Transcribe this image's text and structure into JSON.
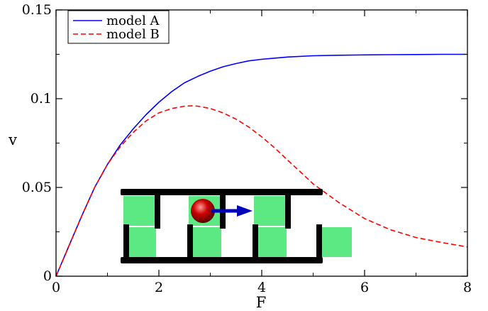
{
  "chart_data": {
    "type": "line",
    "xlabel": "F",
    "ylabel": "v",
    "xlim": [
      0,
      8
    ],
    "ylim": [
      0,
      0.15
    ],
    "x_ticks": [
      0,
      2,
      4,
      6,
      8
    ],
    "x_tick_labels": [
      "0",
      "2",
      "4",
      "6",
      "8"
    ],
    "y_ticks": [
      0,
      0.05,
      0.1,
      0.15
    ],
    "y_tick_labels": [
      "0",
      "0.05",
      "0.1",
      "0.15"
    ],
    "grid": false,
    "legend_position": "top-left",
    "series": [
      {
        "name": "model A",
        "color": "#0000ff",
        "dash": "solid",
        "x": [
          0,
          0.25,
          0.5,
          0.75,
          1.0,
          1.25,
          1.5,
          1.75,
          2.0,
          2.25,
          2.5,
          2.75,
          3.0,
          3.25,
          3.5,
          3.75,
          4.0,
          4.5,
          5.0,
          5.5,
          6.0,
          6.5,
          7.0,
          7.5,
          8.0
        ],
        "y": [
          0,
          0.017,
          0.034,
          0.05,
          0.063,
          0.074,
          0.083,
          0.091,
          0.098,
          0.104,
          0.109,
          0.1125,
          0.1155,
          0.118,
          0.1198,
          0.1213,
          0.1222,
          0.1235,
          0.1242,
          0.1245,
          0.1247,
          0.1248,
          0.1249,
          0.125,
          0.125
        ]
      },
      {
        "name": "model B",
        "color": "#ff0000",
        "dash": "dashed",
        "x": [
          0,
          0.25,
          0.5,
          0.75,
          1.0,
          1.25,
          1.5,
          1.75,
          2.0,
          2.25,
          2.5,
          2.65,
          2.75,
          3.0,
          3.25,
          3.5,
          3.75,
          4.0,
          4.25,
          4.5,
          4.75,
          5.0,
          5.5,
          6.0,
          6.5,
          7.0,
          7.5,
          8.0
        ],
        "y": [
          0,
          0.017,
          0.034,
          0.05,
          0.063,
          0.073,
          0.081,
          0.0875,
          0.092,
          0.0945,
          0.0958,
          0.096,
          0.0958,
          0.0945,
          0.092,
          0.0885,
          0.084,
          0.0785,
          0.0723,
          0.0655,
          0.0588,
          0.052,
          0.0415,
          0.0325,
          0.0262,
          0.0218,
          0.019,
          0.0165
        ]
      }
    ]
  },
  "inset": {
    "top_cells": [
      "green",
      "white",
      "green",
      "white",
      "green",
      "white"
    ],
    "bottom_cells": [
      "green",
      "white",
      "green",
      "white",
      "green",
      "white",
      "green"
    ],
    "colors": {
      "green": "#5ce882",
      "white": "#ffffff",
      "wall": "#000000",
      "particle": "#cc0000",
      "arrow": "#0000bb"
    }
  }
}
